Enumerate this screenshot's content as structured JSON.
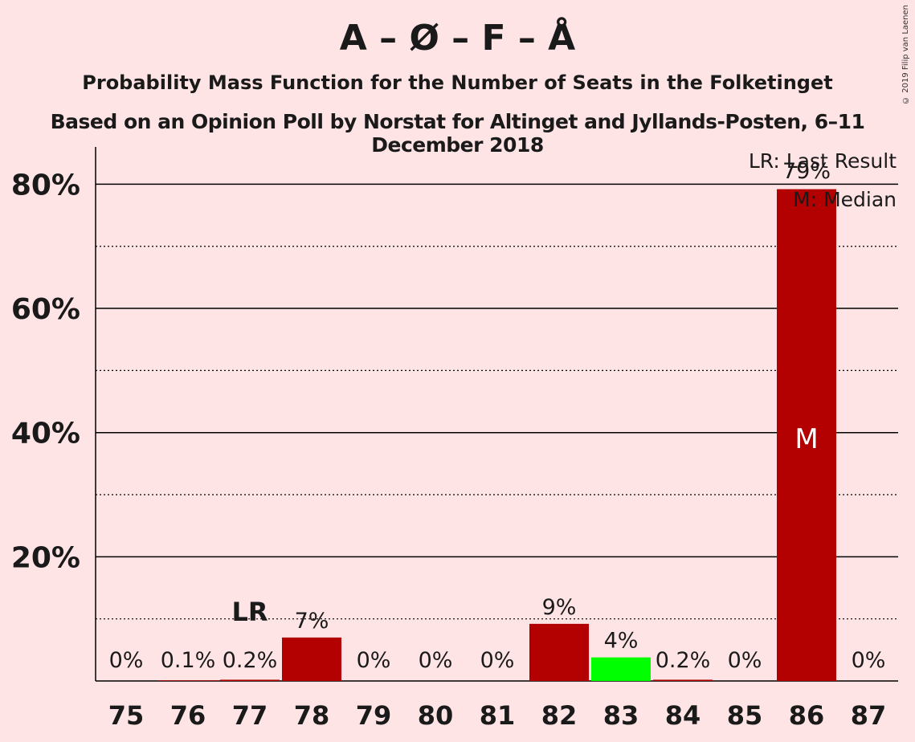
{
  "chart_data": {
    "type": "bar",
    "title": "A – Ø – F – Å",
    "subtitle": "Probability Mass Function for the Number of Seats in the Folketinget",
    "subtitle2": "Based on an Opinion Poll by Norstat for Altinget and Jyllands-Posten, 6–11 December 2018",
    "copyright": "© 2019 Filip van Laenen",
    "categories": [
      "75",
      "76",
      "77",
      "78",
      "79",
      "80",
      "81",
      "82",
      "83",
      "84",
      "85",
      "86",
      "87"
    ],
    "values": [
      0,
      0.1,
      0.2,
      7,
      0,
      0,
      0,
      9.2,
      3.8,
      0.2,
      0,
      79.2,
      0
    ],
    "labels": [
      "0%",
      "0.1%",
      "0.2%",
      "7%",
      "0%",
      "0%",
      "0%",
      "9%",
      "4%",
      "0.2%",
      "0%",
      "79%",
      "0%"
    ],
    "colors": [
      "#b30000",
      "#b30000",
      "#b30000",
      "#b30000",
      "#b30000",
      "#b30000",
      "#b30000",
      "#b30000",
      "#00ff00",
      "#b30000",
      "#b30000",
      "#b30000",
      "#b30000"
    ],
    "yticks": [
      20,
      40,
      60,
      80
    ],
    "ytick_labels": [
      "20%",
      "40%",
      "60%",
      "80%"
    ],
    "ylim": [
      0,
      86
    ],
    "last_result_index": 2,
    "last_result_marker": "LR",
    "median_index": 11,
    "median_marker": "M",
    "legend": {
      "position": "top-right",
      "items": [
        "LR: Last Result",
        "M: Median"
      ]
    }
  }
}
